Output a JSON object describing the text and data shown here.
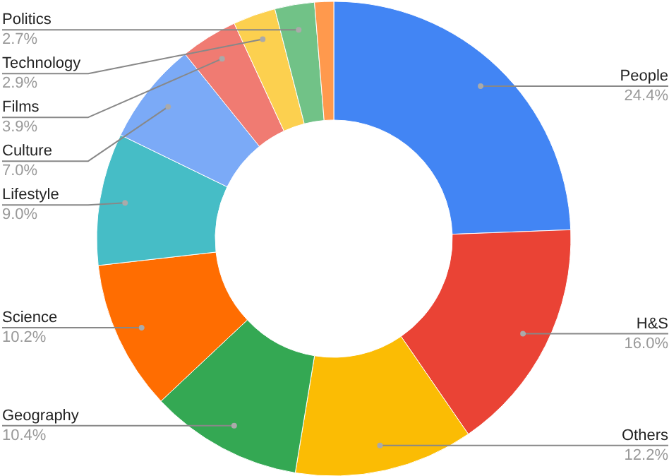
{
  "chart_data": {
    "type": "donut",
    "categories": [
      "People",
      "H&S",
      "Others",
      "Geography",
      "Science",
      "Lifestyle",
      "Culture",
      "Films",
      "Technology",
      "Politics",
      null
    ],
    "values": [
      24.4,
      16.0,
      12.2,
      10.4,
      10.2,
      9.0,
      7.0,
      3.9,
      2.9,
      2.7,
      1.3
    ],
    "value_labels": [
      "24.4%",
      "16.0%",
      "12.2%",
      "10.4%",
      "10.2%",
      "9.0%",
      "7.0%",
      "3.9%",
      "2.9%",
      "2.7%",
      null
    ],
    "colors": [
      "#4285f4",
      "#ea4335",
      "#fbbc04",
      "#34a853",
      "#ff6d01",
      "#46bdc6",
      "#7baaf7",
      "#f07b72",
      "#fcd04f",
      "#71c287",
      "#ff994d"
    ]
  }
}
